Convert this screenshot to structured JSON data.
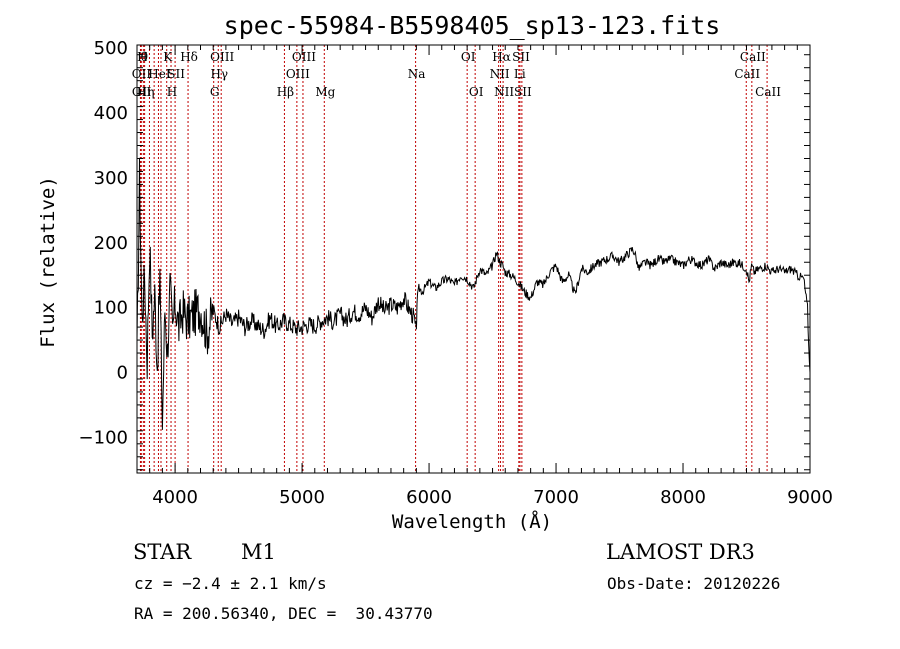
{
  "chart_data": {
    "type": "line",
    "title": "spec-55984-B5598405_sp13-123.fits",
    "xlabel": "Wavelength (Å)",
    "ylabel": "Flux (relative)",
    "xlim": [
      3700,
      9000
    ],
    "ylim": [
      -155,
      505
    ],
    "x_ticks": [
      4000,
      5000,
      6000,
      7000,
      8000,
      9000
    ],
    "y_ticks": [
      -100,
      0,
      100,
      200,
      300,
      400,
      500
    ],
    "x_tick_labels": [
      "4000",
      "5000",
      "6000",
      "7000",
      "8000",
      "9000"
    ],
    "y_tick_labels": [
      "−100",
      "0",
      "100",
      "200",
      "300",
      "400",
      "500"
    ],
    "series": [
      {
        "name": "flux",
        "x": [
          3700,
          3720,
          3740,
          3760,
          3780,
          3800,
          3820,
          3840,
          3860,
          3880,
          3900,
          3920,
          3940,
          3960,
          3980,
          4000,
          4030,
          4060,
          4100,
          4150,
          4200,
          4250,
          4300,
          4350,
          4400,
          4450,
          4500,
          4550,
          4600,
          4650,
          4700,
          4750,
          4800,
          4850,
          4900,
          4950,
          5000,
          5050,
          5100,
          5150,
          5200,
          5250,
          5300,
          5350,
          5400,
          5450,
          5500,
          5550,
          5600,
          5650,
          5700,
          5750,
          5800,
          5850,
          5880,
          5900,
          5905,
          5920,
          5950,
          6000,
          6050,
          6100,
          6150,
          6200,
          6250,
          6300,
          6350,
          6400,
          6450,
          6500,
          6530,
          6560,
          6580,
          6600,
          6650,
          6700,
          6750,
          6800,
          6850,
          6900,
          6950,
          7000,
          7050,
          7100,
          7150,
          7200,
          7250,
          7300,
          7350,
          7400,
          7450,
          7500,
          7550,
          7600,
          7620,
          7650,
          7700,
          7750,
          7800,
          7850,
          7900,
          7950,
          8000,
          8050,
          8100,
          8150,
          8200,
          8250,
          8300,
          8350,
          8400,
          8450,
          8500,
          8520,
          8540,
          8560,
          8600,
          8650,
          8700,
          8750,
          8800,
          8850,
          8900,
          8950,
          8980,
          8990,
          9000
        ],
        "values": [
          20,
          300,
          80,
          150,
          20,
          200,
          60,
          120,
          10,
          150,
          -80,
          100,
          30,
          130,
          60,
          110,
          70,
          95,
          80,
          90,
          100,
          60,
          95,
          70,
          90,
          75,
          85,
          70,
          80,
          72,
          65,
          85,
          70,
          80,
          75,
          68,
          70,
          75,
          72,
          80,
          85,
          78,
          90,
          80,
          95,
          90,
          100,
          85,
          110,
          95,
          105,
          100,
          115,
          95,
          85,
          60,
          110,
          130,
          125,
          140,
          130,
          140,
          145,
          135,
          150,
          145,
          130,
          160,
          150,
          165,
          185,
          170,
          165,
          155,
          150,
          140,
          125,
          115,
          140,
          135,
          155,
          165,
          140,
          150,
          120,
          160,
          155,
          165,
          170,
          175,
          180,
          170,
          180,
          190,
          185,
          160,
          170,
          165,
          175,
          170,
          175,
          170,
          165,
          175,
          170,
          165,
          175,
          160,
          170,
          165,
          170,
          168,
          160,
          140,
          165,
          155,
          160,
          165,
          155,
          160,
          155,
          160,
          150,
          145,
          100,
          40,
          0
        ]
      }
    ],
    "reference_lines": [
      {
        "x": 3727,
        "label": "OII",
        "row": 2
      },
      {
        "x": 3728,
        "label": "OII",
        "row": 3
      },
      {
        "x": 3734,
        "label": "H",
        "row": 1
      },
      {
        "x": 3750,
        "label": "θ",
        "row": 1
      },
      {
        "x": 3760,
        "label": "Hη",
        "row": 3
      },
      {
        "x": 3798,
        "label": "",
        "row": 0
      },
      {
        "x": 3835,
        "label": "",
        "row": 0
      },
      {
        "x": 3869,
        "label": "HeI",
        "row": 2
      },
      {
        "x": 3889,
        "label": "",
        "row": 0
      },
      {
        "x": 3934,
        "label": "K",
        "row": 1
      },
      {
        "x": 3968,
        "label": "H",
        "row": 3
      },
      {
        "x": 4000,
        "label": "SII",
        "row": 2
      },
      {
        "x": 4102,
        "label": "Hδ",
        "row": 1
      },
      {
        "x": 4304,
        "label": "G",
        "row": 3
      },
      {
        "x": 4340,
        "label": "Hγ",
        "row": 2
      },
      {
        "x": 4363,
        "label": "OIII",
        "row": 1
      },
      {
        "x": 4861,
        "label": "Hβ",
        "row": 3
      },
      {
        "x": 4959,
        "label": "OIII",
        "row": 2
      },
      {
        "x": 5007,
        "label": "OIII",
        "row": 1
      },
      {
        "x": 5175,
        "label": "Mg",
        "row": 3
      },
      {
        "x": 5894,
        "label": "Na",
        "row": 2
      },
      {
        "x": 6300,
        "label": "OI",
        "row": 1
      },
      {
        "x": 6363,
        "label": "OI",
        "row": 3
      },
      {
        "x": 6548,
        "label": "NII",
        "row": 2
      },
      {
        "x": 6563,
        "label": "Hα",
        "row": 1
      },
      {
        "x": 6583,
        "label": "NII",
        "row": 3
      },
      {
        "x": 6707,
        "label": "Li",
        "row": 2
      },
      {
        "x": 6716,
        "label": "SII",
        "row": 1
      },
      {
        "x": 6731,
        "label": "SII",
        "row": 3
      },
      {
        "x": 8498,
        "label": "CaII",
        "row": 2
      },
      {
        "x": 8542,
        "label": "CaII",
        "row": 1
      },
      {
        "x": 8662,
        "label": "CaII",
        "row": 3
      }
    ]
  },
  "footer": {
    "object_class": "STAR",
    "subclass": "M1",
    "redshift": "cz = −2.4 ± 2.1 km/s",
    "coords": "RA = 200.56340, DEC =  30.43770",
    "survey": "LAMOST DR3",
    "obs_date": "Obs-Date: 20120226"
  },
  "colors": {
    "spectrum": "#000000",
    "reference_line": "#c00000",
    "axis": "#000000"
  }
}
